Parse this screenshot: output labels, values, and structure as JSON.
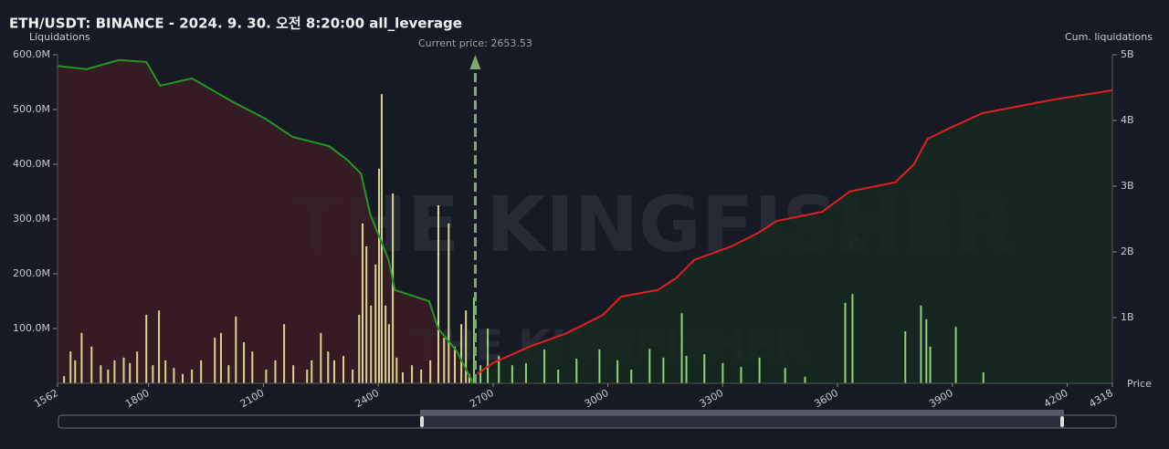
{
  "chart_data": {
    "type": "liquidation_map",
    "title": "ETH/USDT: BINANCE - 2024. 9. 30. 오전 8:20:00 all_leverage",
    "y_label": "Liquidations",
    "y2_label": "Cum. liquidations",
    "x_label": "Price",
    "watermark": "THE KINGFISHER",
    "watermark_suffix": "io",
    "current_price": {
      "value": 2653.53,
      "label": "Current price: 2653.53"
    },
    "xlim": [
      1562,
      4318
    ],
    "xticks": [
      1562,
      1800,
      2100,
      2400,
      2700,
      3000,
      3300,
      3600,
      3900,
      4200,
      4318
    ],
    "ylim": [
      0,
      600
    ],
    "yticks": [
      {
        "value": 100,
        "label": "100.0M"
      },
      {
        "value": 200,
        "label": "200.0M"
      },
      {
        "value": 300,
        "label": "300.0M"
      },
      {
        "value": 400,
        "label": "400.0M"
      },
      {
        "value": 500,
        "label": "500.0M"
      },
      {
        "value": 600,
        "label": "600.0M"
      }
    ],
    "y2lim": [
      0,
      5
    ],
    "y2ticks": [
      {
        "value": 1,
        "label": "1B"
      },
      {
        "value": 2,
        "label": "2B"
      },
      {
        "value": 3,
        "label": "3B"
      },
      {
        "value": 4,
        "label": "4B"
      },
      {
        "value": 5,
        "label": "5B"
      }
    ],
    "bars_below": {
      "color": "#d8d58f",
      "x": [
        1579,
        1596,
        1608,
        1625,
        1651,
        1675,
        1694,
        1711,
        1735,
        1751,
        1770,
        1794,
        1811,
        1827,
        1844,
        1866,
        1889,
        1913,
        1937,
        1973,
        1989,
        2009,
        2028,
        2049,
        2071,
        2107,
        2131,
        2154,
        2178,
        2214,
        2226,
        2250,
        2269,
        2285,
        2309,
        2333,
        2350,
        2359,
        2369,
        2381,
        2393,
        2402,
        2409,
        2419,
        2428,
        2438,
        2448,
        2464,
        2488,
        2512,
        2536,
        2557,
        2572,
        2584,
        2600,
        2617,
        2629,
        2638
      ],
      "values": [
        13,
        58,
        42,
        92,
        67,
        33,
        25,
        42,
        47,
        37,
        58,
        125,
        33,
        133,
        42,
        28,
        17,
        25,
        42,
        83,
        92,
        33,
        122,
        75,
        58,
        25,
        42,
        108,
        33,
        25,
        42,
        92,
        58,
        42,
        50,
        25,
        125,
        292,
        250,
        142,
        217,
        392,
        528,
        142,
        108,
        347,
        47,
        20,
        33,
        25,
        42,
        325,
        83,
        292,
        67,
        108,
        133,
        17
      ]
    },
    "bars_above": {
      "color": "#90d27c",
      "x": [
        2650,
        2667,
        2686,
        2715,
        2750,
        2786,
        2834,
        2870,
        2918,
        2978,
        3025,
        3061,
        3109,
        3145,
        3193,
        3205,
        3252,
        3300,
        3348,
        3396,
        3463,
        3515,
        3620,
        3639,
        3777,
        3818,
        3832,
        3842,
        3909,
        3981
      ],
      "values": [
        157,
        33,
        100,
        50,
        33,
        37,
        62,
        25,
        45,
        62,
        42,
        25,
        63,
        47,
        128,
        50,
        53,
        37,
        30,
        47,
        28,
        12,
        147,
        163,
        95,
        142,
        117,
        67,
        103,
        20
      ]
    },
    "cum_below": {
      "color": "#1f9a1f",
      "axis": "y2",
      "x": [
        1562,
        1638,
        1722,
        1794,
        1830,
        1913,
        2021,
        2104,
        2176,
        2271,
        2319,
        2355,
        2379,
        2427,
        2443,
        2533,
        2557,
        2605,
        2648
      ],
      "values": [
        4.83,
        4.78,
        4.92,
        4.89,
        4.53,
        4.64,
        4.28,
        4.03,
        3.75,
        3.61,
        3.4,
        3.19,
        2.57,
        1.88,
        1.42,
        1.25,
        0.83,
        0.49,
        0
      ]
    },
    "cum_above": {
      "color": "#e02020",
      "axis": "y2",
      "x": [
        2658,
        2700,
        2796,
        2891,
        2987,
        3035,
        3130,
        3178,
        3226,
        3321,
        3393,
        3441,
        3560,
        3632,
        3751,
        3799,
        3835,
        3895,
        3978,
        4157,
        4318
      ],
      "values": [
        0.14,
        0.31,
        0.56,
        0.76,
        1.04,
        1.32,
        1.42,
        1.6,
        1.88,
        2.08,
        2.29,
        2.47,
        2.61,
        2.92,
        3.06,
        3.33,
        3.72,
        3.89,
        4.11,
        4.31,
        4.46
      ]
    }
  }
}
